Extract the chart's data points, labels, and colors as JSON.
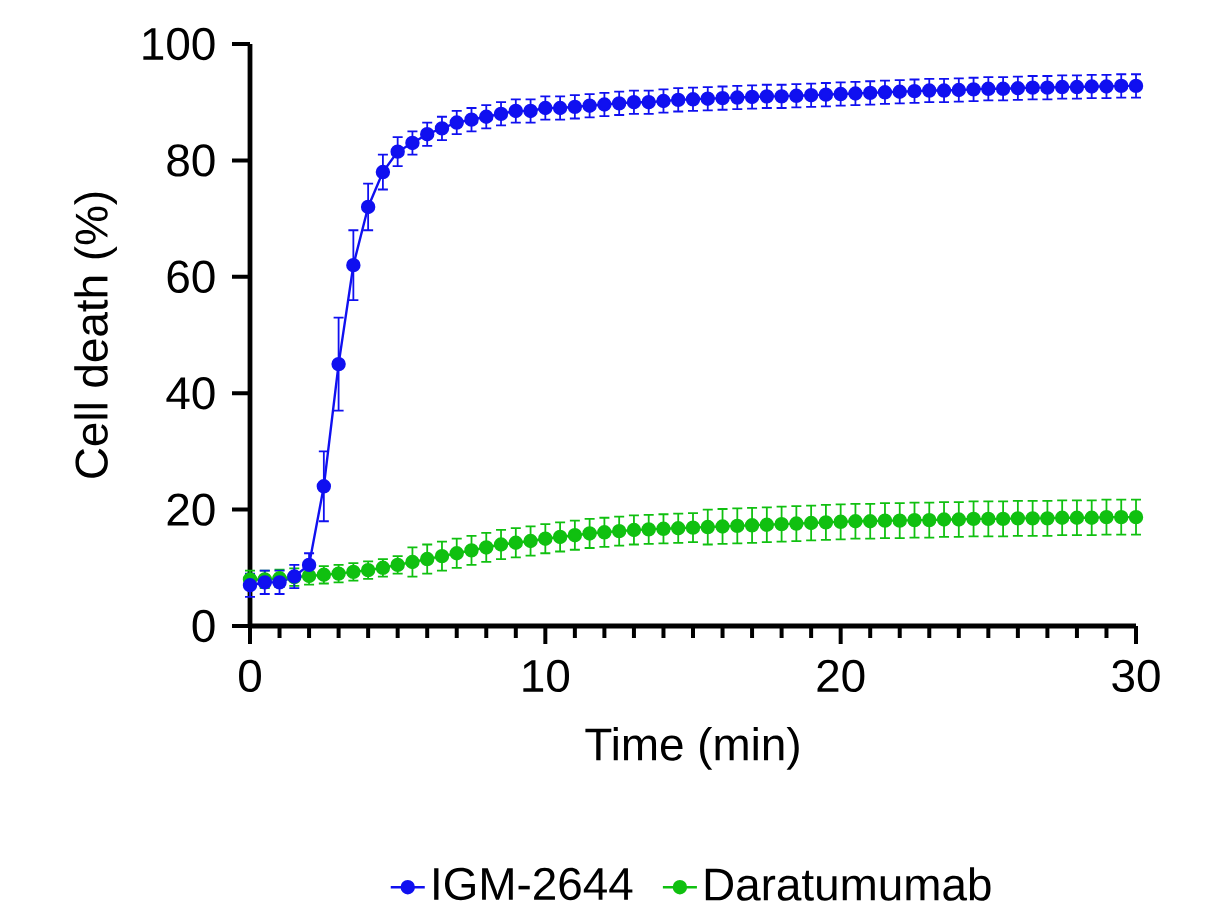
{
  "chart_data": {
    "type": "line",
    "xlabel": "Time (min)",
    "ylabel": "Cell death (%)",
    "xlim": [
      0,
      30
    ],
    "ylim": [
      0,
      100
    ],
    "xticks": [
      0,
      10,
      20,
      30
    ],
    "yticks": [
      0,
      20,
      40,
      60,
      80,
      100
    ],
    "legend": "bottom",
    "marker": "circle",
    "line_style": "solid",
    "x": [
      0,
      0.5,
      1,
      1.5,
      2,
      2.5,
      3,
      3.5,
      4,
      4.5,
      5,
      5.5,
      6,
      6.5,
      7,
      7.5,
      8,
      8.5,
      9,
      9.5,
      10,
      10.5,
      11,
      11.5,
      12,
      12.5,
      13,
      13.5,
      14,
      14.5,
      15,
      15.5,
      16,
      16.5,
      17,
      17.5,
      18,
      18.5,
      19,
      19.5,
      20,
      20.5,
      21,
      21.5,
      22,
      22.5,
      23,
      23.5,
      24,
      24.5,
      25,
      25.5,
      26,
      26.5,
      27,
      27.5,
      28,
      28.5,
      29,
      29.5,
      30
    ],
    "series": [
      {
        "name": "IGM-2644",
        "color": "#1010f0",
        "values": [
          7,
          7.5,
          7.5,
          8.5,
          10.5,
          24,
          45,
          62,
          72,
          78,
          81.5,
          83,
          84.5,
          85.5,
          86.5,
          87,
          87.5,
          88,
          88.5,
          88.5,
          89,
          89,
          89.2,
          89.4,
          89.6,
          89.8,
          90,
          90,
          90.2,
          90.4,
          90.5,
          90.6,
          90.7,
          90.8,
          90.9,
          91,
          91,
          91.1,
          91.2,
          91.3,
          91.4,
          91.5,
          91.6,
          91.7,
          91.8,
          91.9,
          92,
          92,
          92.1,
          92.2,
          92.3,
          92.3,
          92.4,
          92.5,
          92.5,
          92.6,
          92.6,
          92.7,
          92.7,
          92.8,
          92.8
        ],
        "errors": [
          2,
          2,
          2,
          2,
          2,
          6,
          8,
          6,
          4,
          3,
          2.5,
          2,
          2,
          2,
          2,
          2,
          2,
          2,
          2,
          2,
          2,
          2,
          2,
          2,
          2,
          2,
          2,
          2,
          2,
          2,
          2,
          2,
          2,
          2,
          2,
          2,
          2,
          2,
          2,
          2,
          2,
          2,
          2,
          2,
          2,
          2,
          2,
          2,
          2,
          2,
          2,
          2,
          2,
          2,
          2,
          2,
          2,
          2,
          2,
          2,
          2
        ]
      },
      {
        "name": "Daratumumab",
        "color": "#10c010",
        "values": [
          8,
          8,
          8.2,
          8.4,
          8.6,
          8.8,
          9,
          9.3,
          9.6,
          10,
          10.5,
          11,
          11.5,
          12,
          12.5,
          13,
          13.5,
          14,
          14.3,
          14.6,
          15,
          15.3,
          15.6,
          15.9,
          16.1,
          16.3,
          16.5,
          16.6,
          16.7,
          16.8,
          16.9,
          17,
          17.1,
          17.2,
          17.3,
          17.4,
          17.5,
          17.6,
          17.7,
          17.8,
          17.9,
          18,
          18,
          18.1,
          18.1,
          18.2,
          18.2,
          18.3,
          18.3,
          18.4,
          18.4,
          18.4,
          18.5,
          18.5,
          18.5,
          18.6,
          18.6,
          18.6,
          18.7,
          18.7,
          18.7
        ],
        "errors": [
          1.5,
          1.5,
          1.5,
          1.5,
          1.5,
          1.5,
          1.5,
          1.5,
          1.5,
          1.5,
          1.5,
          2.5,
          2.5,
          2.5,
          2.5,
          2.5,
          2.5,
          2.5,
          2.5,
          2.5,
          2.5,
          2.5,
          2.5,
          2.5,
          2.5,
          2.5,
          2.5,
          2.5,
          2.5,
          2.5,
          2.5,
          3,
          3,
          3,
          3,
          3,
          3,
          3,
          3,
          3,
          3,
          3,
          3,
          3,
          3,
          3,
          3,
          3,
          3,
          3,
          3,
          3,
          3,
          3,
          3,
          3,
          3,
          3,
          3,
          3,
          3
        ]
      }
    ]
  }
}
